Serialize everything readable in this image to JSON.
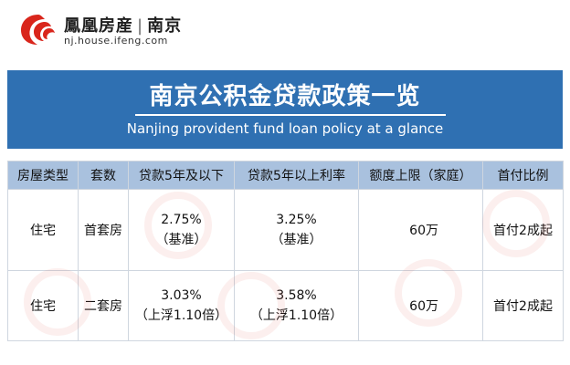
{
  "header": {
    "logo_name": "鳳凰房産",
    "logo_city": "南京",
    "logo_url": "nj.house.ifeng.com",
    "logo_color": "#d9261c"
  },
  "banner": {
    "title": "南京公积金贷款政策一览",
    "subtitle": "Nanjing provident fund loan policy at a glance",
    "background": "#2f70b2"
  },
  "table": {
    "header_background": "#a9c1de",
    "columns": [
      "房屋类型",
      "套数",
      "贷款5年及以下",
      "贷款5年以上利率",
      "额度上限（家庭）",
      "首付比例"
    ],
    "rows": [
      {
        "type": "住宅",
        "count": "首套房",
        "rate_short_value": "2.75%",
        "rate_short_note": "（基准）",
        "rate_long_value": "3.25%",
        "rate_long_note": "（基准）",
        "limit": "60万",
        "down_payment": "首付2成起"
      },
      {
        "type": "住宅",
        "count": "二套房",
        "rate_short_value": "3.03%",
        "rate_short_note": "（上浮1.10倍）",
        "rate_long_value": "3.58%",
        "rate_long_note": "（上浮1.10倍）",
        "limit": "60万",
        "down_payment": "首付2成起"
      }
    ]
  }
}
